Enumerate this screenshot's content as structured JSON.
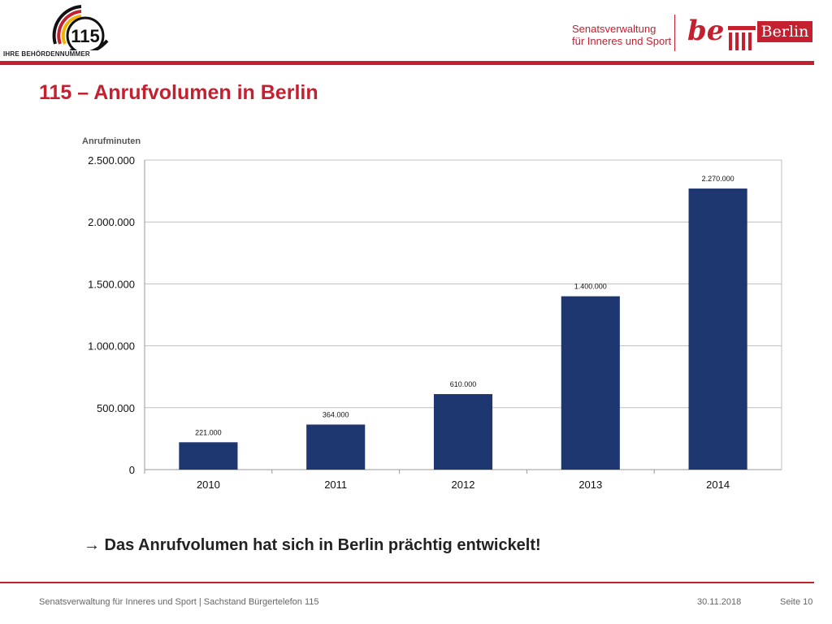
{
  "logo": {
    "number": "115",
    "caption": "IHRE BEHÖRDENNUMMER"
  },
  "header": {
    "senat_line1": "Senatsverwaltung",
    "senat_line2": "für Inneres und Sport",
    "be": "be",
    "berlin": "Berlin"
  },
  "page_title": "115 – Anrufvolumen  in  Berlin",
  "chart_data": {
    "type": "bar",
    "ylabel": "Anrufminuten",
    "categories": [
      "2010",
      "2011",
      "2012",
      "2013",
      "2014"
    ],
    "values": [
      221000,
      364000,
      610000,
      1400000,
      2270000
    ],
    "data_labels": [
      "221.000",
      "364.000",
      "610.000",
      "1.400.000",
      "2.270.000"
    ],
    "ylim": [
      0,
      2500000
    ],
    "yticks": [
      0,
      500000,
      1000000,
      1500000,
      2000000,
      2500000
    ],
    "ytick_labels": [
      "0",
      "500.000",
      "1.000.000",
      "1.500.000",
      "2.000.000",
      "2.500.000"
    ],
    "grid": true,
    "bar_color": "#1f3770"
  },
  "conclusion": "→ Das Anrufvolumen hat sich in Berlin prächtig entwickelt!",
  "footer": {
    "left": "Senatsverwaltung für Inneres und Sport | Sachstand Bürgertelefon 115",
    "date": "30.11.2018",
    "page": "Seite 10"
  },
  "colors": {
    "accent": "#c4202f"
  }
}
